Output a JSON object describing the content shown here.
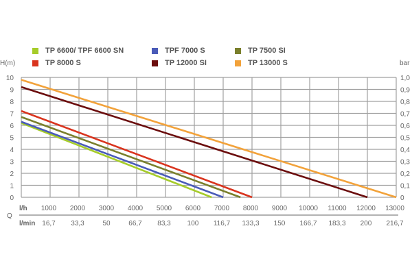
{
  "chart_data": {
    "type": "line",
    "ylabel_left": "H(m)",
    "ylabel_right": "bar",
    "xlabel": "Q",
    "x_unit_top": "l/h",
    "x_unit_bottom": "l/min",
    "xlim": [
      0,
      13000
    ],
    "ylim": [
      0,
      10
    ],
    "y_ticks_left": [
      "0",
      "1",
      "2",
      "3",
      "4",
      "5",
      "6",
      "7",
      "8",
      "9",
      "10"
    ],
    "y_ticks_right": [
      "0",
      "0,1",
      "0,2",
      "0,3",
      "0,4",
      "0,5",
      "0,6",
      "0,7",
      "0,8",
      "0,9",
      "1,0"
    ],
    "x_ticks_top": [
      "1000",
      "2000",
      "3000",
      "4000",
      "5000",
      "6000",
      "7000",
      "8000",
      "9000",
      "10000",
      "11000",
      "12000",
      "13000"
    ],
    "x_ticks_bottom": [
      "16,7",
      "33,3",
      "50",
      "66,7",
      "83,3",
      "100",
      "116,7",
      "133,3",
      "150",
      "166,7",
      "183,3",
      "200",
      "216,7"
    ],
    "grid": true,
    "legend_position": "top",
    "series": [
      {
        "name": "TP 6600/ TPF 6600 SN",
        "color": "#a6cc2a",
        "x": [
          0,
          6600
        ],
        "y": [
          6.2,
          0
        ]
      },
      {
        "name": "TPF 7000 S",
        "color": "#4a5bb8",
        "x": [
          0,
          7000
        ],
        "y": [
          6.3,
          0
        ]
      },
      {
        "name": "TP 7500 SI",
        "color": "#7a7f2c",
        "x": [
          0,
          7600
        ],
        "y": [
          6.7,
          0
        ]
      },
      {
        "name": "TP 8000 S",
        "color": "#d9341e",
        "x": [
          0,
          8000
        ],
        "y": [
          7.2,
          0
        ]
      },
      {
        "name": "TP 12000 SI",
        "color": "#6b0d0d",
        "x": [
          0,
          12000
        ],
        "y": [
          9.2,
          0
        ]
      },
      {
        "name": "TP 13000 S",
        "color": "#f2a23a",
        "x": [
          0,
          13000
        ],
        "y": [
          9.8,
          0
        ]
      }
    ]
  }
}
